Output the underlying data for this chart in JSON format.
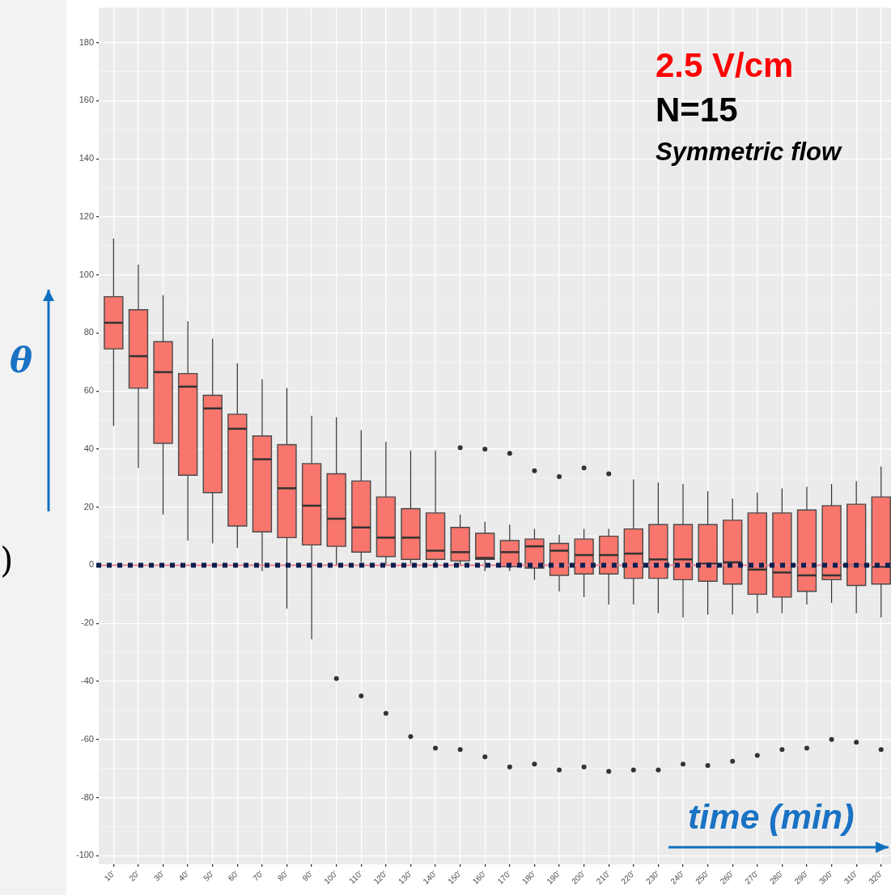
{
  "chart_data": {
    "type": "box",
    "xlabel": "time (min)",
    "ylabel": "θ",
    "color": "#f8766d",
    "categories": [
      "10'",
      "20'",
      "30'",
      "40'",
      "50'",
      "60'",
      "70'",
      "80'",
      "90'",
      "100'",
      "110'",
      "120'",
      "130'",
      "140'",
      "150'",
      "160'",
      "170'",
      "180'",
      "190'",
      "200'",
      "210'",
      "220'",
      "230'",
      "240'",
      "250'",
      "260'",
      "270'",
      "280'",
      "290'",
      "300'",
      "310'",
      "320'"
    ],
    "boxes": [
      {
        "low": 48,
        "q1": 74.5,
        "median": 83.5,
        "q3": 92.5,
        "high": 112.5
      },
      {
        "low": 33.5,
        "q1": 61,
        "median": 72,
        "q3": 88,
        "high": 103.5
      },
      {
        "low": 17.5,
        "q1": 42,
        "median": 66.5,
        "q3": 77,
        "high": 93
      },
      {
        "low": 8.5,
        "q1": 31,
        "median": 61.5,
        "q3": 66,
        "high": 84
      },
      {
        "low": 7.5,
        "q1": 25,
        "median": 54,
        "q3": 58.5,
        "high": 78
      },
      {
        "low": 6,
        "q1": 13.5,
        "median": 47,
        "q3": 52,
        "high": 69.5
      },
      {
        "low": -2,
        "q1": 11.5,
        "median": 36.5,
        "q3": 44.5,
        "high": 64
      },
      {
        "low": -15,
        "q1": 9.5,
        "median": 26.5,
        "q3": 41.5,
        "high": 61
      },
      {
        "low": -25.5,
        "q1": 7,
        "median": 20.5,
        "q3": 35,
        "high": 51.5
      },
      {
        "low": 0,
        "q1": 6.5,
        "median": 16,
        "q3": 31.5,
        "high": 51,
        "outliers": [
          -39
        ]
      },
      {
        "low": 1,
        "q1": 4.5,
        "median": 13,
        "q3": 29,
        "high": 46.5,
        "outliers": [
          -45
        ]
      },
      {
        "low": 0,
        "q1": 3,
        "median": 9.5,
        "q3": 23.5,
        "high": 42.5,
        "outliers": [
          -51
        ]
      },
      {
        "low": 0.5,
        "q1": 2,
        "median": 9.5,
        "q3": 19.5,
        "high": 39.5,
        "outliers": [
          -59
        ]
      },
      {
        "low": 0.5,
        "q1": 2,
        "median": 5,
        "q3": 18,
        "high": 39.5,
        "outliers": [
          -63
        ]
      },
      {
        "low": 0,
        "q1": 1.5,
        "median": 4.5,
        "q3": 13,
        "high": 17.5,
        "outliers": [
          40.5,
          -63.5
        ]
      },
      {
        "low": -2,
        "q1": 2,
        "median": 2.5,
        "q3": 11,
        "high": 15,
        "outliers": [
          40,
          -66
        ]
      },
      {
        "low": -2,
        "q1": -0.5,
        "median": 4.5,
        "q3": 8.5,
        "high": 14,
        "outliers": [
          38.5,
          -69.5
        ]
      },
      {
        "low": -5,
        "q1": -1,
        "median": 6.5,
        "q3": 9,
        "high": 12.5,
        "outliers": [
          32.5,
          -68.5
        ]
      },
      {
        "low": -9,
        "q1": -3.5,
        "median": 5,
        "q3": 7.5,
        "high": 10.5,
        "outliers": [
          30.5,
          -70.5
        ]
      },
      {
        "low": -11,
        "q1": -3,
        "median": 3.5,
        "q3": 9,
        "high": 12.5,
        "outliers": [
          33.5,
          -69.5
        ]
      },
      {
        "low": -13.5,
        "q1": -3,
        "median": 3.5,
        "q3": 10,
        "high": 12.5,
        "outliers": [
          31.5,
          -71
        ]
      },
      {
        "low": -13.5,
        "q1": -4.5,
        "median": 4,
        "q3": 12.5,
        "high": 29.5,
        "outliers": [
          -70.5
        ]
      },
      {
        "low": -16.5,
        "q1": -4.5,
        "median": 2,
        "q3": 14,
        "high": 28.5,
        "outliers": [
          -70.5
        ]
      },
      {
        "low": -18,
        "q1": -5,
        "median": 2,
        "q3": 14,
        "high": 28,
        "outliers": [
          -68.5
        ]
      },
      {
        "low": -17,
        "q1": -5.5,
        "median": 0.5,
        "q3": 14,
        "high": 25.5,
        "outliers": [
          -69
        ]
      },
      {
        "low": -17,
        "q1": -6.5,
        "median": 1,
        "q3": 15.5,
        "high": 23,
        "outliers": [
          -67.5
        ]
      },
      {
        "low": -16.5,
        "q1": -10,
        "median": -1.5,
        "q3": 18,
        "high": 25,
        "outliers": [
          -65.5
        ]
      },
      {
        "low": -16.5,
        "q1": -11,
        "median": -2.5,
        "q3": 18,
        "high": 26.5,
        "outliers": [
          -63.5
        ]
      },
      {
        "low": -13.5,
        "q1": -9,
        "median": -3.5,
        "q3": 19,
        "high": 27,
        "outliers": [
          -63
        ]
      },
      {
        "low": -13,
        "q1": -5,
        "median": -3.5,
        "q3": 20.5,
        "high": 28,
        "outliers": [
          -60
        ]
      },
      {
        "low": -16.5,
        "q1": -7,
        "median": 0,
        "q3": 21,
        "high": 29,
        "outliers": [
          -61
        ]
      },
      {
        "low": -18,
        "q1": -6.5,
        "median": -0.5,
        "q3": 23.5,
        "high": 34,
        "outliers": [
          -63.5
        ]
      }
    ],
    "ylim": [
      -103,
      192
    ],
    "yticks": [
      -100,
      -80,
      -60,
      -40,
      -20,
      0,
      20,
      40,
      60,
      80,
      100,
      120,
      140,
      160,
      180
    ],
    "grid": true,
    "ref_lines": [
      {
        "axis": "y",
        "value": 0,
        "color": "#e8808f",
        "line_style": "solid"
      },
      {
        "axis": "y",
        "value": 0,
        "color": "#0b1f4f",
        "line_style": "dotted"
      }
    ],
    "annotations": [
      "2.5 V/cm",
      "N=15",
      "Symmetric flow",
      ")"
    ]
  }
}
